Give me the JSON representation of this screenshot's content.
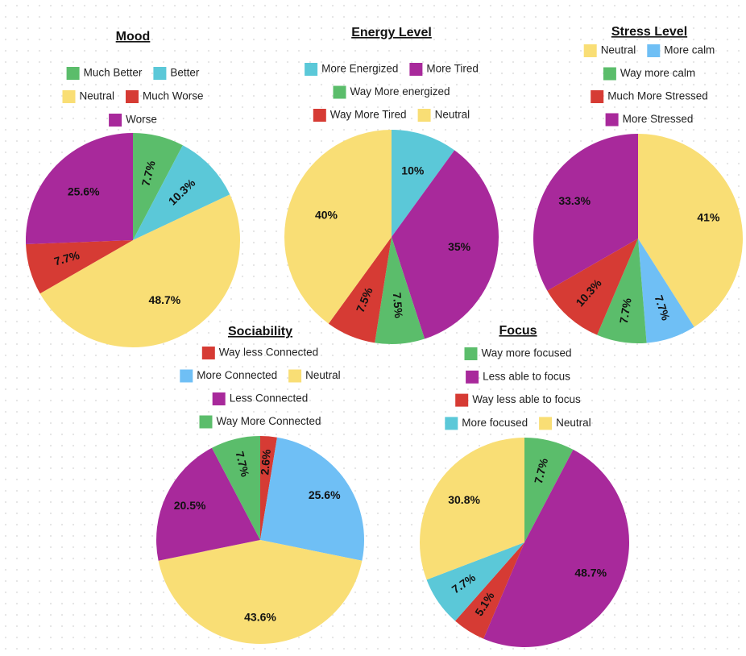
{
  "chart_data": [
    {
      "type": "pie",
      "title": "Mood",
      "legend_rows": [
        [
          "Much Better",
          "Better"
        ],
        [
          "Neutral",
          "Much Worse"
        ],
        [
          "Worse"
        ]
      ],
      "slices": [
        {
          "label": "Much Better",
          "value": 7.7,
          "display": "7.7%",
          "color": "#5bbd6b"
        },
        {
          "label": "Better",
          "value": 10.3,
          "display": "10.3%",
          "color": "#5bc8d8"
        },
        {
          "label": "Neutral",
          "value": 48.7,
          "display": "48.7%",
          "color": "#f9de75"
        },
        {
          "label": "Much Worse",
          "value": 7.7,
          "display": "7.7%",
          "color": "#d63b34"
        },
        {
          "label": "Worse",
          "value": 25.6,
          "display": "25.6%",
          "color": "#a8299b"
        }
      ]
    },
    {
      "type": "pie",
      "title": "Energy Level",
      "legend_rows": [
        [
          "More Energized",
          "More Tired"
        ],
        [
          "Way More energized"
        ],
        [
          "Way More Tired",
          "Neutral"
        ]
      ],
      "slices": [
        {
          "label": "More Energized",
          "value": 10,
          "display": "10%",
          "color": "#5bc8d8"
        },
        {
          "label": "More Tired",
          "value": 35,
          "display": "35%",
          "color": "#a8299b"
        },
        {
          "label": "Way More energized",
          "value": 7.5,
          "display": "7.5%",
          "color": "#5bbd6b"
        },
        {
          "label": "Way More Tired",
          "value": 7.5,
          "display": "7.5%",
          "color": "#d63b34"
        },
        {
          "label": "Neutral",
          "value": 40,
          "display": "40%",
          "color": "#f9de75"
        }
      ]
    },
    {
      "type": "pie",
      "title": "Stress Level",
      "legend_rows": [
        [
          "Neutral",
          "More calm"
        ],
        [
          "Way more calm"
        ],
        [
          "Much More Stressed"
        ],
        [
          "More Stressed"
        ]
      ],
      "slices": [
        {
          "label": "Neutral",
          "value": 41,
          "display": "41%",
          "color": "#f9de75"
        },
        {
          "label": "More calm",
          "value": 7.7,
          "display": "7.7%",
          "color": "#6fbff5"
        },
        {
          "label": "Way more calm",
          "value": 7.7,
          "display": "7.7%",
          "color": "#5bbd6b"
        },
        {
          "label": "Much More Stressed",
          "value": 10.3,
          "display": "10.3%",
          "color": "#d63b34"
        },
        {
          "label": "More Stressed",
          "value": 33.3,
          "display": "33.3%",
          "color": "#a8299b"
        }
      ]
    },
    {
      "type": "pie",
      "title": "Sociability",
      "legend_rows": [
        [
          "Way less Connected"
        ],
        [
          "More Connected",
          "Neutral"
        ],
        [
          "Less Connected"
        ],
        [
          "Way More Connected"
        ]
      ],
      "slices": [
        {
          "label": "Way less Connected",
          "value": 2.6,
          "display": "2.6%",
          "color": "#d63b34"
        },
        {
          "label": "More Connected",
          "value": 25.6,
          "display": "25.6%",
          "color": "#6fbff5"
        },
        {
          "label": "Neutral",
          "value": 43.6,
          "display": "43.6%",
          "color": "#f9de75"
        },
        {
          "label": "Less Connected",
          "value": 20.5,
          "display": "20.5%",
          "color": "#a8299b"
        },
        {
          "label": "Way More Connected",
          "value": 7.7,
          "display": "7.7%",
          "color": "#5bbd6b"
        }
      ]
    },
    {
      "type": "pie",
      "title": "Focus",
      "legend_rows": [
        [
          "Way more focused"
        ],
        [
          "Less able to focus"
        ],
        [
          "Way less able to focus"
        ],
        [
          "More focused",
          "Neutral"
        ]
      ],
      "slices": [
        {
          "label": "Way more focused",
          "value": 7.7,
          "display": "7.7%",
          "color": "#5bbd6b"
        },
        {
          "label": "Less able to focus",
          "value": 48.7,
          "display": "48.7%",
          "color": "#a8299b"
        },
        {
          "label": "Way less able to focus",
          "value": 5.1,
          "display": "5.1%",
          "color": "#d63b34"
        },
        {
          "label": "More focused",
          "value": 7.7,
          "display": "7.7%",
          "color": "#5bc8d8"
        },
        {
          "label": "Neutral",
          "value": 30.8,
          "display": "30.8%",
          "color": "#f9de75"
        }
      ]
    }
  ]
}
